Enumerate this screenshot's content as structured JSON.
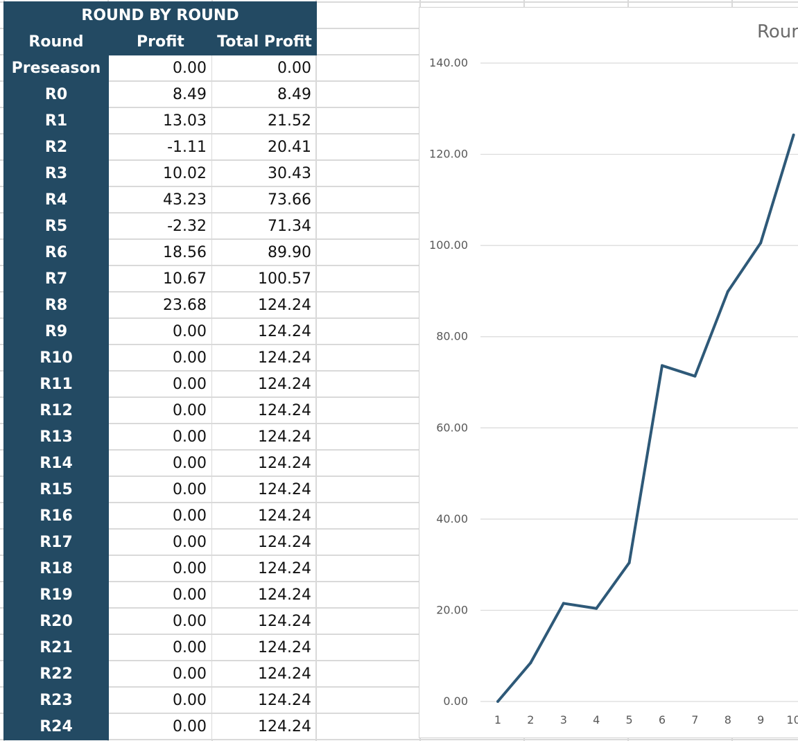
{
  "table": {
    "title": "ROUND BY ROUND",
    "columns": [
      "Round",
      "Profit",
      "Total Profit"
    ],
    "rows": [
      {
        "round": "Preseason",
        "profit": "0.00",
        "total": "0.00"
      },
      {
        "round": "R0",
        "profit": "8.49",
        "total": "8.49"
      },
      {
        "round": "R1",
        "profit": "13.03",
        "total": "21.52"
      },
      {
        "round": "R2",
        "profit": "-1.11",
        "total": "20.41"
      },
      {
        "round": "R3",
        "profit": "10.02",
        "total": "30.43"
      },
      {
        "round": "R4",
        "profit": "43.23",
        "total": "73.66"
      },
      {
        "round": "R5",
        "profit": "-2.32",
        "total": "71.34"
      },
      {
        "round": "R6",
        "profit": "18.56",
        "total": "89.90"
      },
      {
        "round": "R7",
        "profit": "10.67",
        "total": "100.57"
      },
      {
        "round": "R8",
        "profit": "23.68",
        "total": "124.24"
      },
      {
        "round": "R9",
        "profit": "0.00",
        "total": "124.24"
      },
      {
        "round": "R10",
        "profit": "0.00",
        "total": "124.24"
      },
      {
        "round": "R11",
        "profit": "0.00",
        "total": "124.24"
      },
      {
        "round": "R12",
        "profit": "0.00",
        "total": "124.24"
      },
      {
        "round": "R13",
        "profit": "0.00",
        "total": "124.24"
      },
      {
        "round": "R14",
        "profit": "0.00",
        "total": "124.24"
      },
      {
        "round": "R15",
        "profit": "0.00",
        "total": "124.24"
      },
      {
        "round": "R16",
        "profit": "0.00",
        "total": "124.24"
      },
      {
        "round": "R17",
        "profit": "0.00",
        "total": "124.24"
      },
      {
        "round": "R18",
        "profit": "0.00",
        "total": "124.24"
      },
      {
        "round": "R19",
        "profit": "0.00",
        "total": "124.24"
      },
      {
        "round": "R20",
        "profit": "0.00",
        "total": "124.24"
      },
      {
        "round": "R21",
        "profit": "0.00",
        "total": "124.24"
      },
      {
        "round": "R22",
        "profit": "0.00",
        "total": "124.24"
      },
      {
        "round": "R23",
        "profit": "0.00",
        "total": "124.24"
      },
      {
        "round": "R24",
        "profit": "0.00",
        "total": "124.24"
      }
    ]
  },
  "chart_data": {
    "type": "line",
    "title": "Rour",
    "x": [
      "1",
      "2",
      "3",
      "4",
      "5",
      "6",
      "7",
      "8",
      "9",
      "10"
    ],
    "series": [
      {
        "values": [
          0.0,
          8.49,
          21.52,
          20.41,
          30.43,
          73.66,
          71.34,
          89.9,
          100.57,
          124.24
        ]
      }
    ],
    "yticks": [
      "0.00",
      "20.00",
      "40.00",
      "60.00",
      "80.00",
      "100.00",
      "120.00",
      "140.00"
    ],
    "ylim": [
      0,
      140
    ],
    "grid": true,
    "line_color": "#2e5978",
    "xlabel": "",
    "ylabel": ""
  },
  "colors": {
    "header_bg": "#234a63",
    "header_text": "#ffffff",
    "gridline": "#d9d9d9"
  }
}
